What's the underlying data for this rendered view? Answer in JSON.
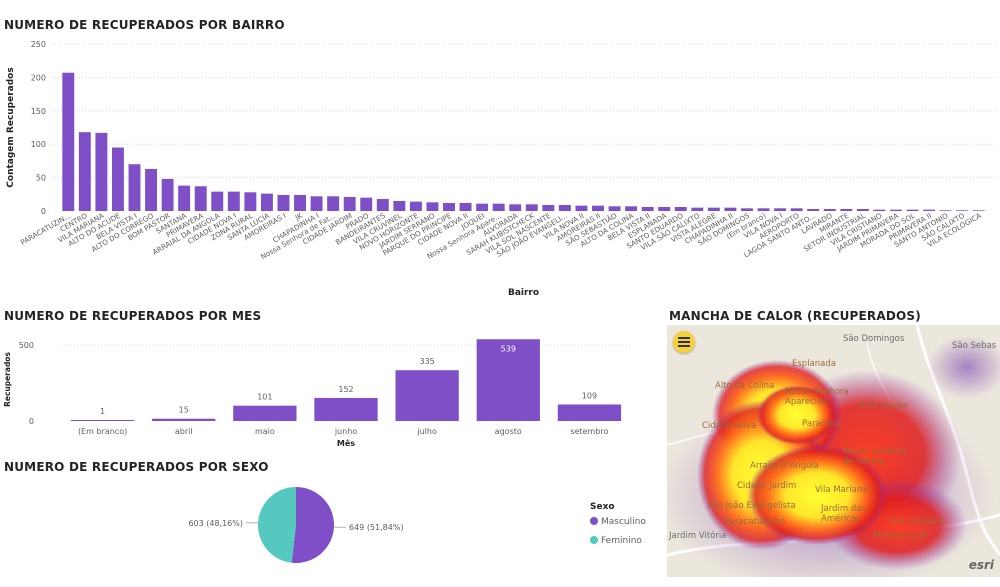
{
  "panels": {
    "bairro_title": "NUMERO DE RECUPERADOS POR BAIRRO",
    "mes_title": "NUMERO DE RECUPERADOS POR MES",
    "sexo_title": "NUMERO DE RECUPERADOS POR SEXO",
    "map_title": "MANCHA DE CALOR (RECUPERADOS)"
  },
  "colors": {
    "bar": "#7f4fc7",
    "masculino": "#7f4fc7",
    "feminino": "#55c8c0",
    "grid": "#d9d9d9"
  },
  "chart_data": [
    {
      "type": "bar",
      "title": "NUMERO DE RECUPERADOS POR BAIRRO",
      "xlabel": "Bairro",
      "ylabel": "Contagem Recuperados",
      "ylim": [
        0,
        250
      ],
      "yticks": [
        0,
        50,
        100,
        150,
        200,
        250
      ],
      "grid": true,
      "categories": [
        "PARACATUZIN...",
        "CENTRO",
        "VILA MARIANA",
        "ALTO DO ACUDE",
        "BELA VISTA I",
        "ALTO DO CORREGO",
        "BOM PASTOR",
        "SANTANA",
        "PRIMAVERA",
        "ARRAIAL DA ANGOLA",
        "CIDADE NOVA I",
        "ZONA RURAL",
        "SANTA LUCIA",
        "AMOREIRAS I",
        "JK",
        "CHAPADINHA I",
        "Nossa Senhora de Fat...",
        "CIDADE JARDIM",
        "PRADO",
        "BANDEIRANTES",
        "VILA CRUVINEL",
        "NOVO HORIZONTE",
        "JARDIM SERRANO",
        "PARQUE DO PRINCIPE",
        "CIDADE NOVA II",
        "JOQUEI",
        "Nossa Senhora Apare...",
        "ALVORADA",
        "SARAH KUBISTCHECK",
        "VILA SOL NASCENTE",
        "SÃO JOÃO EVANGELI...",
        "VILA NOVA II",
        "AMOREIRAS II",
        "SÃO SEBASTIÃO",
        "ALTO DA COLINA",
        "BELA VISTA II",
        "ESPLANADA",
        "SANTO EDUARDO",
        "VILA SÃO CALIXTO",
        "VISTA ALEGRE",
        "CHAPADINHA II",
        "SÃO DOMINGOS",
        "(Em branco)",
        "VILA NOVA I",
        "AEROPORTO",
        "LAGOA SANTO ANTO...",
        "LAVRADO",
        "MIRANTE",
        "SETOR INDUSTRIAL",
        "VILA CRISTIANO",
        "JARDIM PRIMAVERA",
        "MORADA DO SOL",
        "PRIMAVERA II",
        "SANTO ANTONIO",
        "SÃO CALIXTO",
        "VILA ECOLÓGICA"
      ],
      "values": [
        207,
        118,
        117,
        95,
        70,
        63,
        48,
        38,
        37,
        29,
        29,
        28,
        26,
        24,
        24,
        22,
        22,
        21,
        20,
        18,
        15,
        14,
        13,
        12,
        12,
        11,
        11,
        10,
        10,
        9,
        9,
        8,
        8,
        7,
        7,
        6,
        6,
        6,
        5,
        5,
        5,
        4,
        4,
        4,
        4,
        3,
        3,
        3,
        3,
        2,
        2,
        2,
        2,
        1,
        1,
        1
      ]
    },
    {
      "type": "bar",
      "title": "NUMERO DE RECUPERADOS POR MES",
      "xlabel": "Mês",
      "ylabel": "Recuperados",
      "ylim": [
        0,
        600
      ],
      "yticks": [
        0,
        500
      ],
      "grid": true,
      "categories": [
        "(Em branco)",
        "abril",
        "maio",
        "junho",
        "julho",
        "agosto",
        "setembro"
      ],
      "values": [
        1,
        15,
        101,
        152,
        335,
        539,
        109
      ]
    },
    {
      "type": "pie",
      "title": "NUMERO DE RECUPERADOS POR SEXO",
      "legend_title": "Sexo",
      "legend_position": "right",
      "labels": [
        "Masculino",
        "Feminino"
      ],
      "values": [
        649,
        603
      ],
      "data_labels": [
        "649 (51,84%)",
        "603 (48,16%)"
      ]
    }
  ],
  "map": {
    "menu_icon": "hamburger-menu-icon",
    "attribution": "esri",
    "labels": [
      "São Domingos",
      "São Sebas",
      "Esplanada",
      "Alto da Colina",
      "Nossa Senhora Aparecida",
      "Vista Alegre",
      "Paracatu",
      "Cidade Nova",
      "Nossa Senhora de Fatima",
      "Arraial D'Angola",
      "Cidade Jardim",
      "Vila Mariana",
      "São João Evangelista",
      "Jardim das Américas",
      "Paracatuzinho",
      "Vila Cristiano",
      "Jardim Vitória",
      "Primavera III"
    ]
  }
}
